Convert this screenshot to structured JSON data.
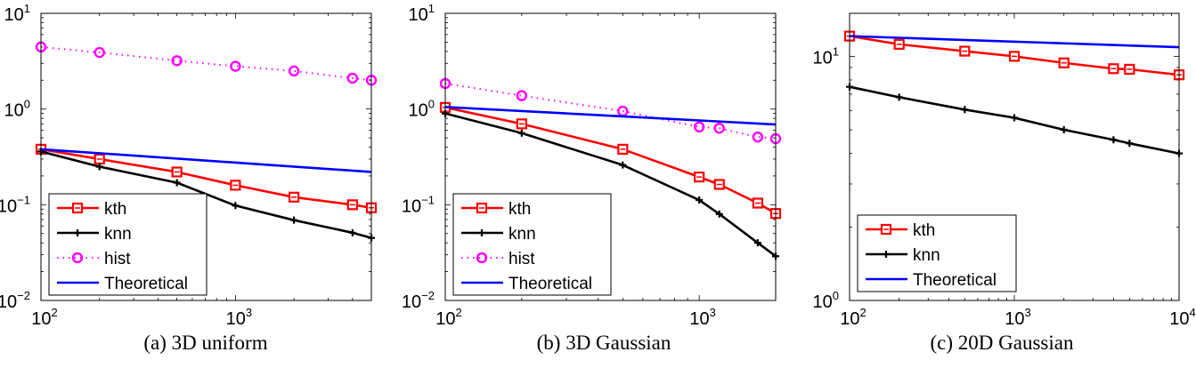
{
  "chart_data": [
    {
      "type": "line",
      "caption": "(a) 3D uniform",
      "xscale": "log",
      "yscale": "log",
      "xlim": [
        100,
        5000
      ],
      "ylim": [
        0.01,
        10
      ],
      "xticks": [
        {
          "base": "10",
          "exp": "2",
          "value": 100
        },
        {
          "base": "10",
          "exp": "3",
          "value": 1000
        }
      ],
      "yticks": [
        {
          "base": "10",
          "exp": "1",
          "value": 10
        },
        {
          "base": "10",
          "exp": "0",
          "value": 1
        },
        {
          "base": "10",
          "exp": "−1",
          "value": 0.1
        },
        {
          "base": "10",
          "exp": "−2",
          "value": 0.01
        }
      ],
      "legend_position": "bottom-left",
      "series": [
        {
          "name": "kth",
          "color": "#ff0000",
          "marker": "square",
          "style": "solid",
          "x": [
            100,
            200,
            500,
            1000,
            2000,
            4000,
            5000
          ],
          "y": [
            0.38,
            0.3,
            0.22,
            0.16,
            0.12,
            0.1,
            0.093
          ]
        },
        {
          "name": "knn",
          "color": "#000000",
          "marker": "plus",
          "style": "solid",
          "x": [
            100,
            200,
            500,
            1000,
            2000,
            4000,
            5000
          ],
          "y": [
            0.36,
            0.25,
            0.17,
            0.098,
            0.069,
            0.051,
            0.045
          ]
        },
        {
          "name": "hist",
          "color": "#ff00ff",
          "marker": "circle",
          "style": "dotted",
          "x": [
            100,
            200,
            500,
            1000,
            2000,
            4000,
            5000
          ],
          "y": [
            4.45,
            3.9,
            3.2,
            2.8,
            2.5,
            2.1,
            2.0
          ]
        },
        {
          "name": "Theoretical",
          "color": "#0000ff",
          "marker": "none",
          "style": "solid",
          "x": [
            100,
            5000
          ],
          "y": [
            0.38,
            0.22
          ]
        }
      ]
    },
    {
      "type": "line",
      "caption": "(b) 3D Gaussian",
      "xscale": "log",
      "yscale": "log",
      "xlim": [
        100,
        2000
      ],
      "ylim": [
        0.01,
        10
      ],
      "xticks": [
        {
          "base": "10",
          "exp": "2",
          "value": 100
        },
        {
          "base": "10",
          "exp": "3",
          "value": 1000
        }
      ],
      "yticks": [
        {
          "base": "10",
          "exp": "1",
          "value": 10
        },
        {
          "base": "10",
          "exp": "0",
          "value": 1
        },
        {
          "base": "10",
          "exp": "−1",
          "value": 0.1
        },
        {
          "base": "10",
          "exp": "−2",
          "value": 0.01
        }
      ],
      "legend_position": "bottom-left",
      "series": [
        {
          "name": "kth",
          "color": "#ff0000",
          "marker": "square",
          "style": "solid",
          "x": [
            100,
            200,
            500,
            1000,
            1200,
            1700,
            2000
          ],
          "y": [
            1.04,
            0.7,
            0.38,
            0.195,
            0.163,
            0.104,
            0.081
          ]
        },
        {
          "name": "knn",
          "color": "#000000",
          "marker": "plus",
          "style": "solid",
          "x": [
            100,
            200,
            500,
            1000,
            1200,
            1700,
            2000
          ],
          "y": [
            0.9,
            0.56,
            0.26,
            0.112,
            0.08,
            0.04,
            0.029
          ]
        },
        {
          "name": "hist",
          "color": "#ff00ff",
          "marker": "circle",
          "style": "dotted",
          "x": [
            100,
            200,
            500,
            1000,
            1200,
            1700,
            2000
          ],
          "y": [
            1.85,
            1.38,
            0.95,
            0.65,
            0.63,
            0.51,
            0.49
          ]
        },
        {
          "name": "Theoretical",
          "color": "#0000ff",
          "marker": "none",
          "style": "solid",
          "x": [
            100,
            2000
          ],
          "y": [
            1.05,
            0.69
          ]
        }
      ]
    },
    {
      "type": "line",
      "caption": "(c) 20D Gaussian",
      "xscale": "log",
      "yscale": "log",
      "xlim": [
        100,
        10000
      ],
      "ylim": [
        1,
        15
      ],
      "xticks": [
        {
          "base": "10",
          "exp": "2",
          "value": 100
        },
        {
          "base": "10",
          "exp": "3",
          "value": 1000
        },
        {
          "base": "10",
          "exp": "4",
          "value": 10000
        }
      ],
      "yticks": [
        {
          "base": "10",
          "exp": "1",
          "value": 10
        },
        {
          "base": "10",
          "exp": "0",
          "value": 1
        }
      ],
      "legend_position": "bottom-left",
      "series": [
        {
          "name": "kth",
          "color": "#ff0000",
          "marker": "square",
          "style": "solid",
          "x": [
            100,
            200,
            500,
            1000,
            2000,
            4000,
            5000,
            10000
          ],
          "y": [
            12.1,
            11.2,
            10.5,
            10.0,
            9.4,
            8.9,
            8.85,
            8.4
          ]
        },
        {
          "name": "knn",
          "color": "#000000",
          "marker": "plus",
          "style": "solid",
          "x": [
            100,
            200,
            500,
            1000,
            2000,
            4000,
            5000,
            10000
          ],
          "y": [
            7.5,
            6.8,
            6.05,
            5.6,
            5.0,
            4.55,
            4.4,
            4.0
          ]
        },
        {
          "name": "Theoretical",
          "color": "#0000ff",
          "marker": "none",
          "style": "solid",
          "x": [
            100,
            10000
          ],
          "y": [
            12.1,
            10.9
          ]
        }
      ]
    }
  ]
}
